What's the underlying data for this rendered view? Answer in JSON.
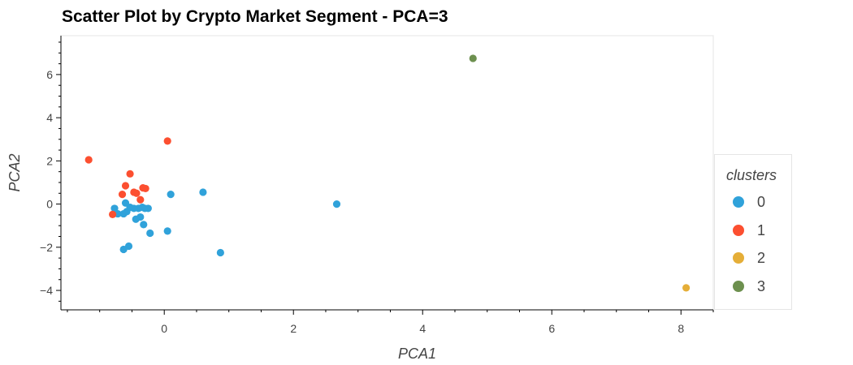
{
  "title": "Scatter Plot by Crypto Market Segment - PCA=3",
  "chart_data": {
    "type": "scatter",
    "title": "Scatter Plot by Crypto Market Segment - PCA=3",
    "xlabel": "PCA1",
    "ylabel": "PCA2",
    "xlim": [
      -1.6,
      8.5
    ],
    "ylim": [
      -4.9,
      7.8
    ],
    "x_ticks": [
      "0",
      "2",
      "4",
      "6",
      "8"
    ],
    "y_ticks": [
      "−4",
      "−2",
      "0",
      "2",
      "4",
      "6"
    ],
    "legend_title": "clusters",
    "legend_position": "right",
    "grid": false,
    "series": [
      {
        "name": "0",
        "color": "#30a2da",
        "points": [
          [
            -0.77,
            -0.2
          ],
          [
            -0.72,
            -0.45
          ],
          [
            -0.63,
            -0.45
          ],
          [
            -0.6,
            0.05
          ],
          [
            -0.58,
            -0.35
          ],
          [
            -0.53,
            -0.15
          ],
          [
            -0.47,
            -0.2
          ],
          [
            -0.44,
            -0.7
          ],
          [
            -0.4,
            -0.2
          ],
          [
            -0.37,
            -0.6
          ],
          [
            -0.34,
            -0.15
          ],
          [
            -0.32,
            -0.95
          ],
          [
            -0.3,
            -0.2
          ],
          [
            -0.25,
            -0.2
          ],
          [
            -0.22,
            -1.35
          ],
          [
            -0.55,
            -1.95
          ],
          [
            -0.63,
            -2.1
          ],
          [
            0.05,
            -1.25
          ],
          [
            0.1,
            0.45
          ],
          [
            0.6,
            0.55
          ],
          [
            0.87,
            -2.25
          ],
          [
            2.67,
            0.0
          ]
        ]
      },
      {
        "name": "1",
        "color": "#fc4f30",
        "points": [
          [
            -1.17,
            2.05
          ],
          [
            -0.8,
            -0.48
          ],
          [
            -0.65,
            0.45
          ],
          [
            -0.6,
            0.85
          ],
          [
            -0.53,
            1.4
          ],
          [
            -0.47,
            0.55
          ],
          [
            -0.43,
            0.5
          ],
          [
            -0.37,
            0.2
          ],
          [
            -0.33,
            0.75
          ],
          [
            -0.29,
            0.72
          ],
          [
            0.05,
            2.92
          ]
        ]
      },
      {
        "name": "2",
        "color": "#e5ae38",
        "points": [
          [
            8.08,
            -3.88
          ]
        ]
      },
      {
        "name": "3",
        "color": "#6d904f",
        "points": [
          [
            4.78,
            6.75
          ]
        ]
      }
    ]
  }
}
